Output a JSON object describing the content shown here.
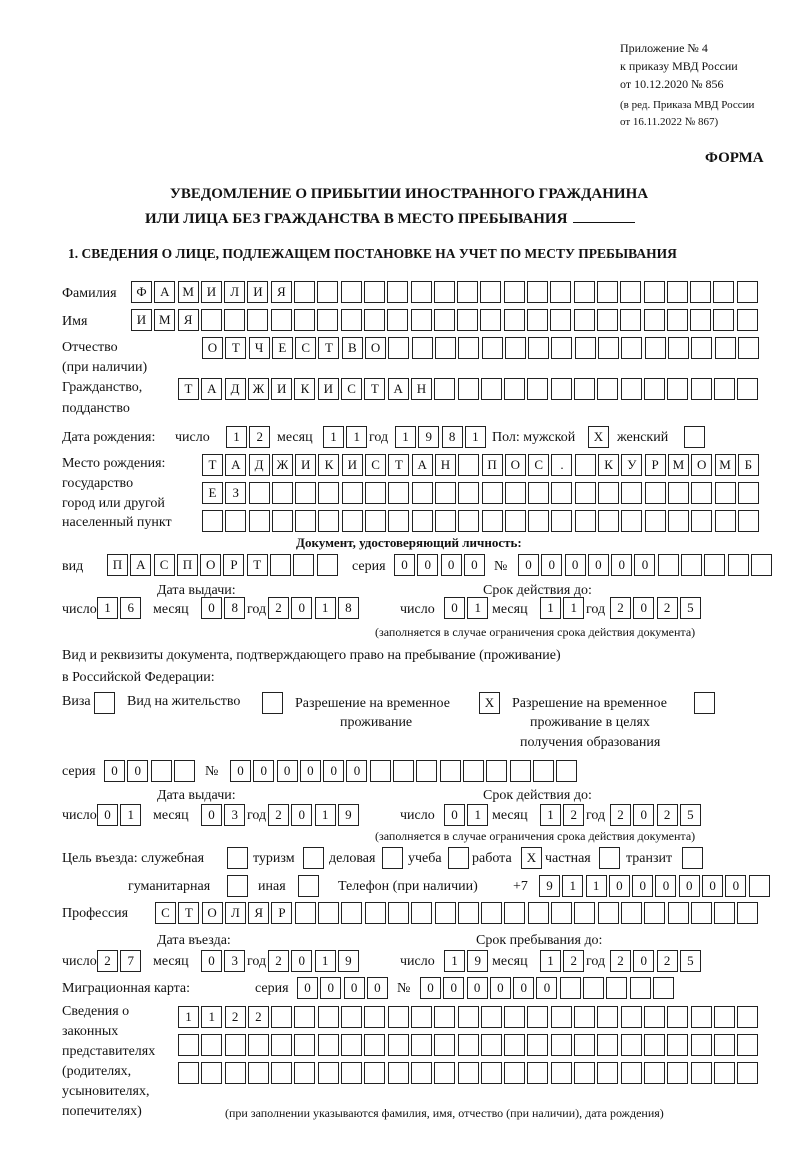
{
  "header": {
    "appendix_lines": [
      "Приложение № 4",
      "к приказу МВД России",
      "от 10.12.2020 № 856"
    ],
    "amendment_lines": [
      "(в ред. Приказа МВД России",
      "от 16.11.2022 № 867)"
    ],
    "form_label": "ФОРМА",
    "title_line1": "УВЕДОМЛЕНИЕ О ПРИБЫТИИ ИНОСТРАННОГО ГРАЖДАНИНА",
    "title_line2": "ИЛИ ЛИЦА БЕЗ ГРАЖДАНСТВА В МЕСТО ПРЕБЫВАНИЯ",
    "section1": "1. СВЕДЕНИЯ О ЛИЦЕ, ПОДЛЕЖАЩЕМ ПОСТАНОВКЕ НА УЧЕТ ПО МЕСТУ ПРЕБЫВАНИЯ"
  },
  "labels": {
    "surname": "Фамилия",
    "name": "Имя",
    "patronymic": "Отчество",
    "patronymic_note": "(при наличии)",
    "citizenship": "Гражданство,",
    "citizenship2": "подданство",
    "birth_date": "Дата рождения:",
    "day": "число",
    "month": "месяц",
    "year": "год",
    "sex": "Пол: мужской",
    "female": "женский",
    "birth_place": "Место рождения:",
    "bp2": "государство",
    "bp3": "город или другой",
    "bp4": "населенный пункт",
    "id_doc": "Документ, удостоверяющий личность:",
    "kind": "вид",
    "series": "серия",
    "number": "№",
    "issue_date": "Дата выдачи:",
    "valid_until": "Срок действия до:",
    "validity_note": "(заполняется в случае ограничения срока действия документа)",
    "right_doc1": "Вид и реквизиты документа, подтверждающего право на пребывание (проживание)",
    "right_doc2": "в Российской Федерации:",
    "visa": "Виза",
    "residence_permit": "Вид на жительство",
    "temp_permit1": "Разрешение на временное",
    "temp_permit2": "проживание",
    "temp_edu1": "Разрешение на временное",
    "temp_edu2": "проживание в целях",
    "temp_edu3": "получения образования",
    "purpose": "Цель въезда: служебная",
    "tourism": "туризм",
    "business": "деловая",
    "study": "учеба",
    "work": "работа",
    "private": "частная",
    "transit": "транзит",
    "humanitarian": "гуманитарная",
    "other": "иная",
    "phone": "Телефон (при наличии)",
    "phone_prefix": "+7",
    "profession": "Профессия",
    "entry_date": "Дата въезда:",
    "stay_until": "Срок пребывания до:",
    "migration_card": "Миграционная карта:",
    "legal_reps": [
      "Сведения о",
      "законных",
      "представителях",
      "(родителях,",
      "усыновителях,",
      "попечителях)"
    ],
    "legal_reps_note": "(при заполнении указываются фамилия, имя, отчество (при наличии), дата рождения)"
  },
  "fields": {
    "surname": [
      "Ф",
      "А",
      "М",
      "И",
      "Л",
      "И",
      "Я",
      "",
      "",
      "",
      "",
      "",
      "",
      "",
      "",
      "",
      "",
      "",
      "",
      "",
      "",
      "",
      "",
      "",
      "",
      "",
      ""
    ],
    "name": [
      "И",
      "М",
      "Я",
      "",
      "",
      "",
      "",
      "",
      "",
      "",
      "",
      "",
      "",
      "",
      "",
      "",
      "",
      "",
      "",
      "",
      "",
      "",
      "",
      "",
      "",
      "",
      ""
    ],
    "patronymic": [
      "О",
      "Т",
      "Ч",
      "Е",
      "С",
      "Т",
      "В",
      "О",
      "",
      "",
      "",
      "",
      "",
      "",
      "",
      "",
      "",
      "",
      "",
      "",
      "",
      "",
      "",
      ""
    ],
    "citizenship": [
      "Т",
      "А",
      "Д",
      "Ж",
      "И",
      "К",
      "И",
      "С",
      "Т",
      "А",
      "Н",
      "",
      "",
      "",
      "",
      "",
      "",
      "",
      "",
      "",
      "",
      "",
      "",
      "",
      ""
    ],
    "birth_day": [
      "1",
      "2"
    ],
    "birth_month": [
      "1",
      "1"
    ],
    "birth_year": [
      "1",
      "9",
      "8",
      "1"
    ],
    "sex_male": [
      "X"
    ],
    "sex_female": [
      ""
    ],
    "birth_place_1": [
      "Т",
      "А",
      "Д",
      "Ж",
      "И",
      "К",
      "И",
      "С",
      "Т",
      "А",
      "Н",
      "",
      "П",
      "О",
      "С",
      ".",
      "",
      "К",
      "У",
      "Р",
      "М",
      "О",
      "М",
      "Б"
    ],
    "birth_place_2": [
      "Е",
      "З",
      "",
      "",
      "",
      "",
      "",
      "",
      "",
      "",
      "",
      "",
      "",
      "",
      "",
      "",
      "",
      "",
      "",
      "",
      "",
      "",
      "",
      ""
    ],
    "birth_place_3": [
      "",
      "",
      "",
      "",
      "",
      "",
      "",
      "",
      "",
      "",
      "",
      "",
      "",
      "",
      "",
      "",
      "",
      "",
      "",
      "",
      "",
      "",
      "",
      ""
    ],
    "id_kind": [
      "П",
      "А",
      "С",
      "П",
      "О",
      "Р",
      "Т",
      "",
      "",
      ""
    ],
    "id_series": [
      "0",
      "0",
      "0",
      "0"
    ],
    "id_number": [
      "0",
      "0",
      "0",
      "0",
      "0",
      "0",
      "",
      "",
      "",
      "",
      ""
    ],
    "id_issue_day": [
      "1",
      "6"
    ],
    "id_issue_month": [
      "0",
      "8"
    ],
    "id_issue_year": [
      "2",
      "0",
      "1",
      "8"
    ],
    "id_valid_day": [
      "0",
      "1"
    ],
    "id_valid_month": [
      "1",
      "1"
    ],
    "id_valid_year": [
      "2",
      "0",
      "2",
      "5"
    ],
    "visa": [
      ""
    ],
    "residence_permit": [
      ""
    ],
    "temp_permit": [
      "X"
    ],
    "temp_edu": [
      ""
    ],
    "rd_series": [
      "0",
      "0",
      "",
      ""
    ],
    "rd_number": [
      "0",
      "0",
      "0",
      "0",
      "0",
      "0",
      "",
      "",
      "",
      "",
      "",
      "",
      "",
      "",
      ""
    ],
    "rd_issue_day": [
      "0",
      "1"
    ],
    "rd_issue_month": [
      "0",
      "3"
    ],
    "rd_issue_year": [
      "2",
      "0",
      "1",
      "9"
    ],
    "rd_valid_day": [
      "0",
      "1"
    ],
    "rd_valid_month": [
      "1",
      "2"
    ],
    "rd_valid_year": [
      "2",
      "0",
      "2",
      "5"
    ],
    "p_official": [
      ""
    ],
    "p_tourism": [
      ""
    ],
    "p_business": [
      ""
    ],
    "p_study": [
      ""
    ],
    "p_work": [
      "X"
    ],
    "p_private": [
      ""
    ],
    "p_transit": [
      ""
    ],
    "p_humanitarian": [
      ""
    ],
    "p_other": [
      ""
    ],
    "phone": [
      "9",
      "1",
      "1",
      "0",
      "0",
      "0",
      "0",
      "0",
      "0",
      ""
    ],
    "profession": [
      "С",
      "Т",
      "О",
      "Л",
      "Я",
      "Р",
      "",
      "",
      "",
      "",
      "",
      "",
      "",
      "",
      "",
      "",
      "",
      "",
      "",
      "",
      "",
      "",
      "",
      "",
      "",
      ""
    ],
    "entry_day": [
      "2",
      "7"
    ],
    "entry_month": [
      "0",
      "3"
    ],
    "entry_year": [
      "2",
      "0",
      "1",
      "9"
    ],
    "stay_day": [
      "1",
      "9"
    ],
    "stay_month": [
      "1",
      "2"
    ],
    "stay_year": [
      "2",
      "0",
      "2",
      "5"
    ],
    "mc_series": [
      "0",
      "0",
      "0",
      "0"
    ],
    "mc_number": [
      "0",
      "0",
      "0",
      "0",
      "0",
      "0",
      "",
      "",
      "",
      "",
      ""
    ],
    "reps_1": [
      "1",
      "1",
      "2",
      "2",
      "",
      "",
      "",
      "",
      "",
      "",
      "",
      "",
      "",
      "",
      "",
      "",
      "",
      "",
      "",
      "",
      "",
      "",
      "",
      "",
      ""
    ],
    "reps_2": [
      "",
      "",
      "",
      "",
      "",
      "",
      "",
      "",
      "",
      "",
      "",
      "",
      "",
      "",
      "",
      "",
      "",
      "",
      "",
      "",
      "",
      "",
      "",
      "",
      ""
    ],
    "reps_3": [
      "",
      "",
      "",
      "",
      "",
      "",
      "",
      "",
      "",
      "",
      "",
      "",
      "",
      "",
      "",
      "",
      "",
      "",
      "",
      "",
      "",
      "",
      "",
      "",
      ""
    ]
  }
}
